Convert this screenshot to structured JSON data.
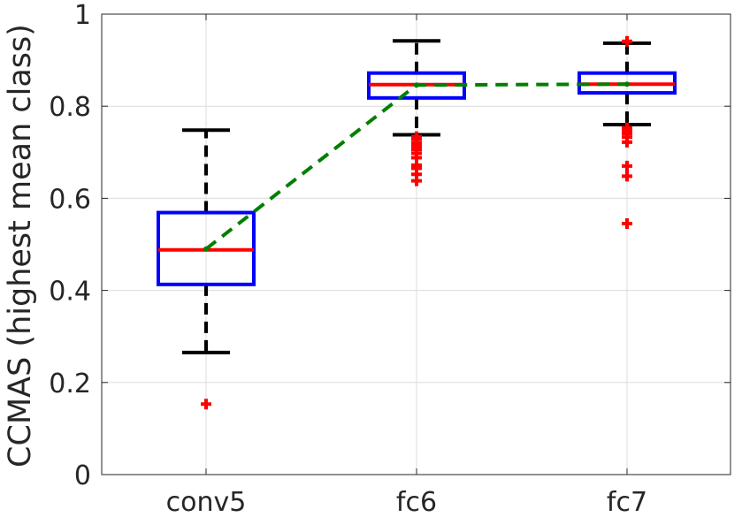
{
  "chart_data": {
    "type": "boxplot",
    "categories": [
      "conv5",
      "fc6",
      "fc7"
    ],
    "ylabel": "CCMAS (highest mean class)",
    "xlabel": "",
    "title": "",
    "ylim": [
      0,
      1
    ],
    "yticks": [
      0,
      0.2,
      0.4,
      0.6,
      0.8,
      1
    ],
    "ytick_labels": [
      "0",
      "0.2",
      "0.4",
      "0.6",
      "0.8",
      "1"
    ],
    "grid": true,
    "boxes": [
      {
        "name": "conv5",
        "whisker_low": 0.265,
        "q1": 0.413,
        "median": 0.488,
        "q3": 0.569,
        "whisker_high": 0.748,
        "outliers": [
          0.153
        ]
      },
      {
        "name": "fc6",
        "whisker_low": 0.738,
        "q1": 0.818,
        "median": 0.847,
        "q3": 0.872,
        "whisker_high": 0.942,
        "outliers": [
          0.638,
          0.652,
          0.665,
          0.672,
          0.688,
          0.698,
          0.706,
          0.713,
          0.72,
          0.728,
          0.734
        ]
      },
      {
        "name": "fc7",
        "whisker_low": 0.76,
        "q1": 0.829,
        "median": 0.848,
        "q3": 0.872,
        "whisker_high": 0.937,
        "outliers": [
          0.545,
          0.648,
          0.67,
          0.722,
          0.733,
          0.741,
          0.748,
          0.753,
          0.941
        ]
      }
    ],
    "mean_line": {
      "values": [
        0.49,
        0.846,
        0.848
      ],
      "color": "#007f00",
      "style": "dashed"
    },
    "colors": {
      "box": "#0000ff",
      "median": "#ff0000",
      "whisker": "#000000",
      "outlier": "#ff0000",
      "grid": "#dcdcdc",
      "axis": "#262626"
    }
  }
}
